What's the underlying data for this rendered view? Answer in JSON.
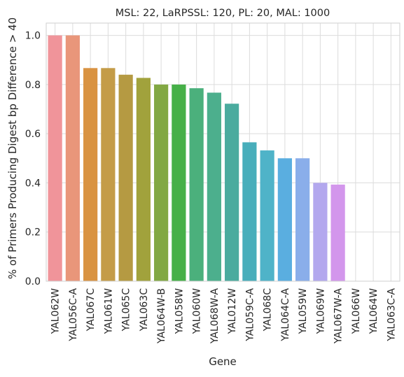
{
  "chart_data": {
    "type": "bar",
    "title": "MSL: 22, LaRPSSL: 120, PL: 20, MAL: 1000",
    "xlabel": "Gene",
    "ylabel": "% of Primers Producing Digest bp Difference > 40",
    "ylim": [
      0,
      1.05
    ],
    "yticks": [
      0.0,
      0.2,
      0.4,
      0.6,
      0.8,
      1.0
    ],
    "ytick_labels": [
      "0.0",
      "0.2",
      "0.4",
      "0.6",
      "0.8",
      "1.0"
    ],
    "grid": true,
    "categories": [
      "YAL062W",
      "YAL056C-A",
      "YAL067C",
      "YAL061W",
      "YAL065C",
      "YAL063C",
      "YAL064W-B",
      "YAL058W",
      "YAL060W",
      "YAL068W-A",
      "YAL012W",
      "YAL059C-A",
      "YAL068C",
      "YAL064C-A",
      "YAL059W",
      "YAL069W",
      "YAL067W-A",
      "YAL066W",
      "YAL064W",
      "YAL063C-A"
    ],
    "values": [
      1.0,
      1.0,
      0.867,
      0.867,
      0.84,
      0.827,
      0.8,
      0.8,
      0.785,
      0.767,
      0.722,
      0.565,
      0.532,
      0.5,
      0.5,
      0.4,
      0.393,
      0.0,
      0.0,
      0.0
    ],
    "colors": [
      "#f0949a",
      "#e9967a",
      "#d99342",
      "#c49c48",
      "#b59a42",
      "#a1a23c",
      "#82a843",
      "#46b048",
      "#4bb07c",
      "#4caf8d",
      "#4aab9e",
      "#48aebb",
      "#4fb3c8",
      "#5aaee0",
      "#8aaeea",
      "#b3a8ee",
      "#d396ec",
      "#ec89d6",
      "#ef8bc0",
      "#f38ca6"
    ]
  }
}
